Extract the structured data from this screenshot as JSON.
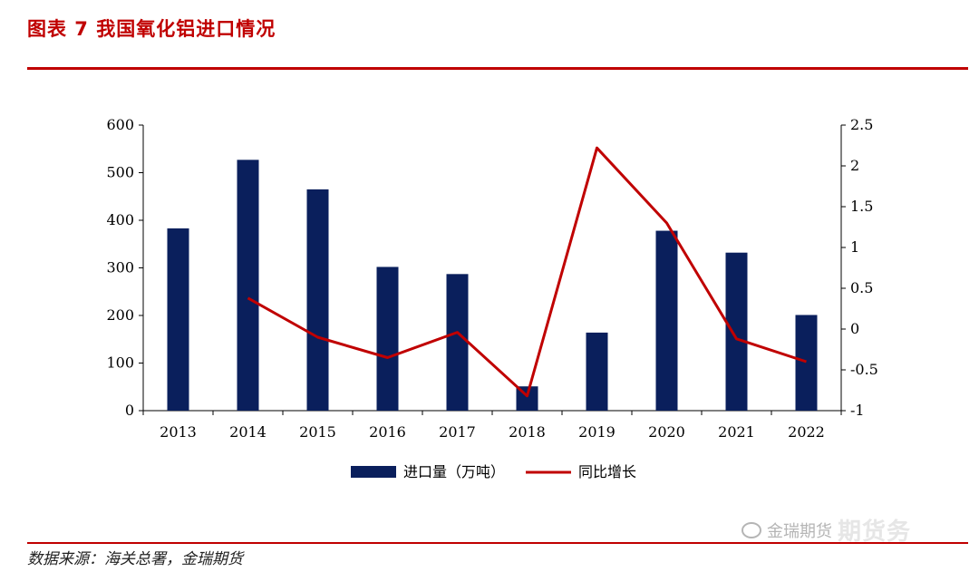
{
  "figure": {
    "title": "图表 7  我国氧化铝进口情况",
    "source": "数据来源：海关总署，金瑞期货",
    "watermark": "金瑞期货",
    "watermark_overlay": "期货务",
    "accent_color": "#c00000"
  },
  "chart_data": {
    "type": "bar",
    "categories": [
      "2013",
      "2014",
      "2015",
      "2016",
      "2017",
      "2018",
      "2019",
      "2020",
      "2021",
      "2022"
    ],
    "series": [
      {
        "name": "进口量（万吨）",
        "type": "bar",
        "axis": "left",
        "color": "#0a1f5c",
        "values": [
          383,
          527,
          465,
          302,
          287,
          51,
          164,
          378,
          332,
          201
        ]
      },
      {
        "name": "同比增长",
        "type": "line",
        "axis": "right",
        "color": "#c00000",
        "values": [
          null,
          0.38,
          -0.1,
          -0.35,
          -0.04,
          -0.82,
          2.22,
          1.3,
          -0.12,
          -0.4
        ]
      }
    ],
    "y_left": {
      "min": 0,
      "max": 600,
      "ticks": [
        "0",
        "100",
        "200",
        "300",
        "400",
        "500",
        "600"
      ]
    },
    "y_right": {
      "min": -1,
      "max": 2.5,
      "ticks": [
        "-1",
        "-0.5",
        "0",
        "0.5",
        "1",
        "1.5",
        "2",
        "2.5"
      ]
    },
    "grid": false,
    "legend_position": "bottom"
  }
}
